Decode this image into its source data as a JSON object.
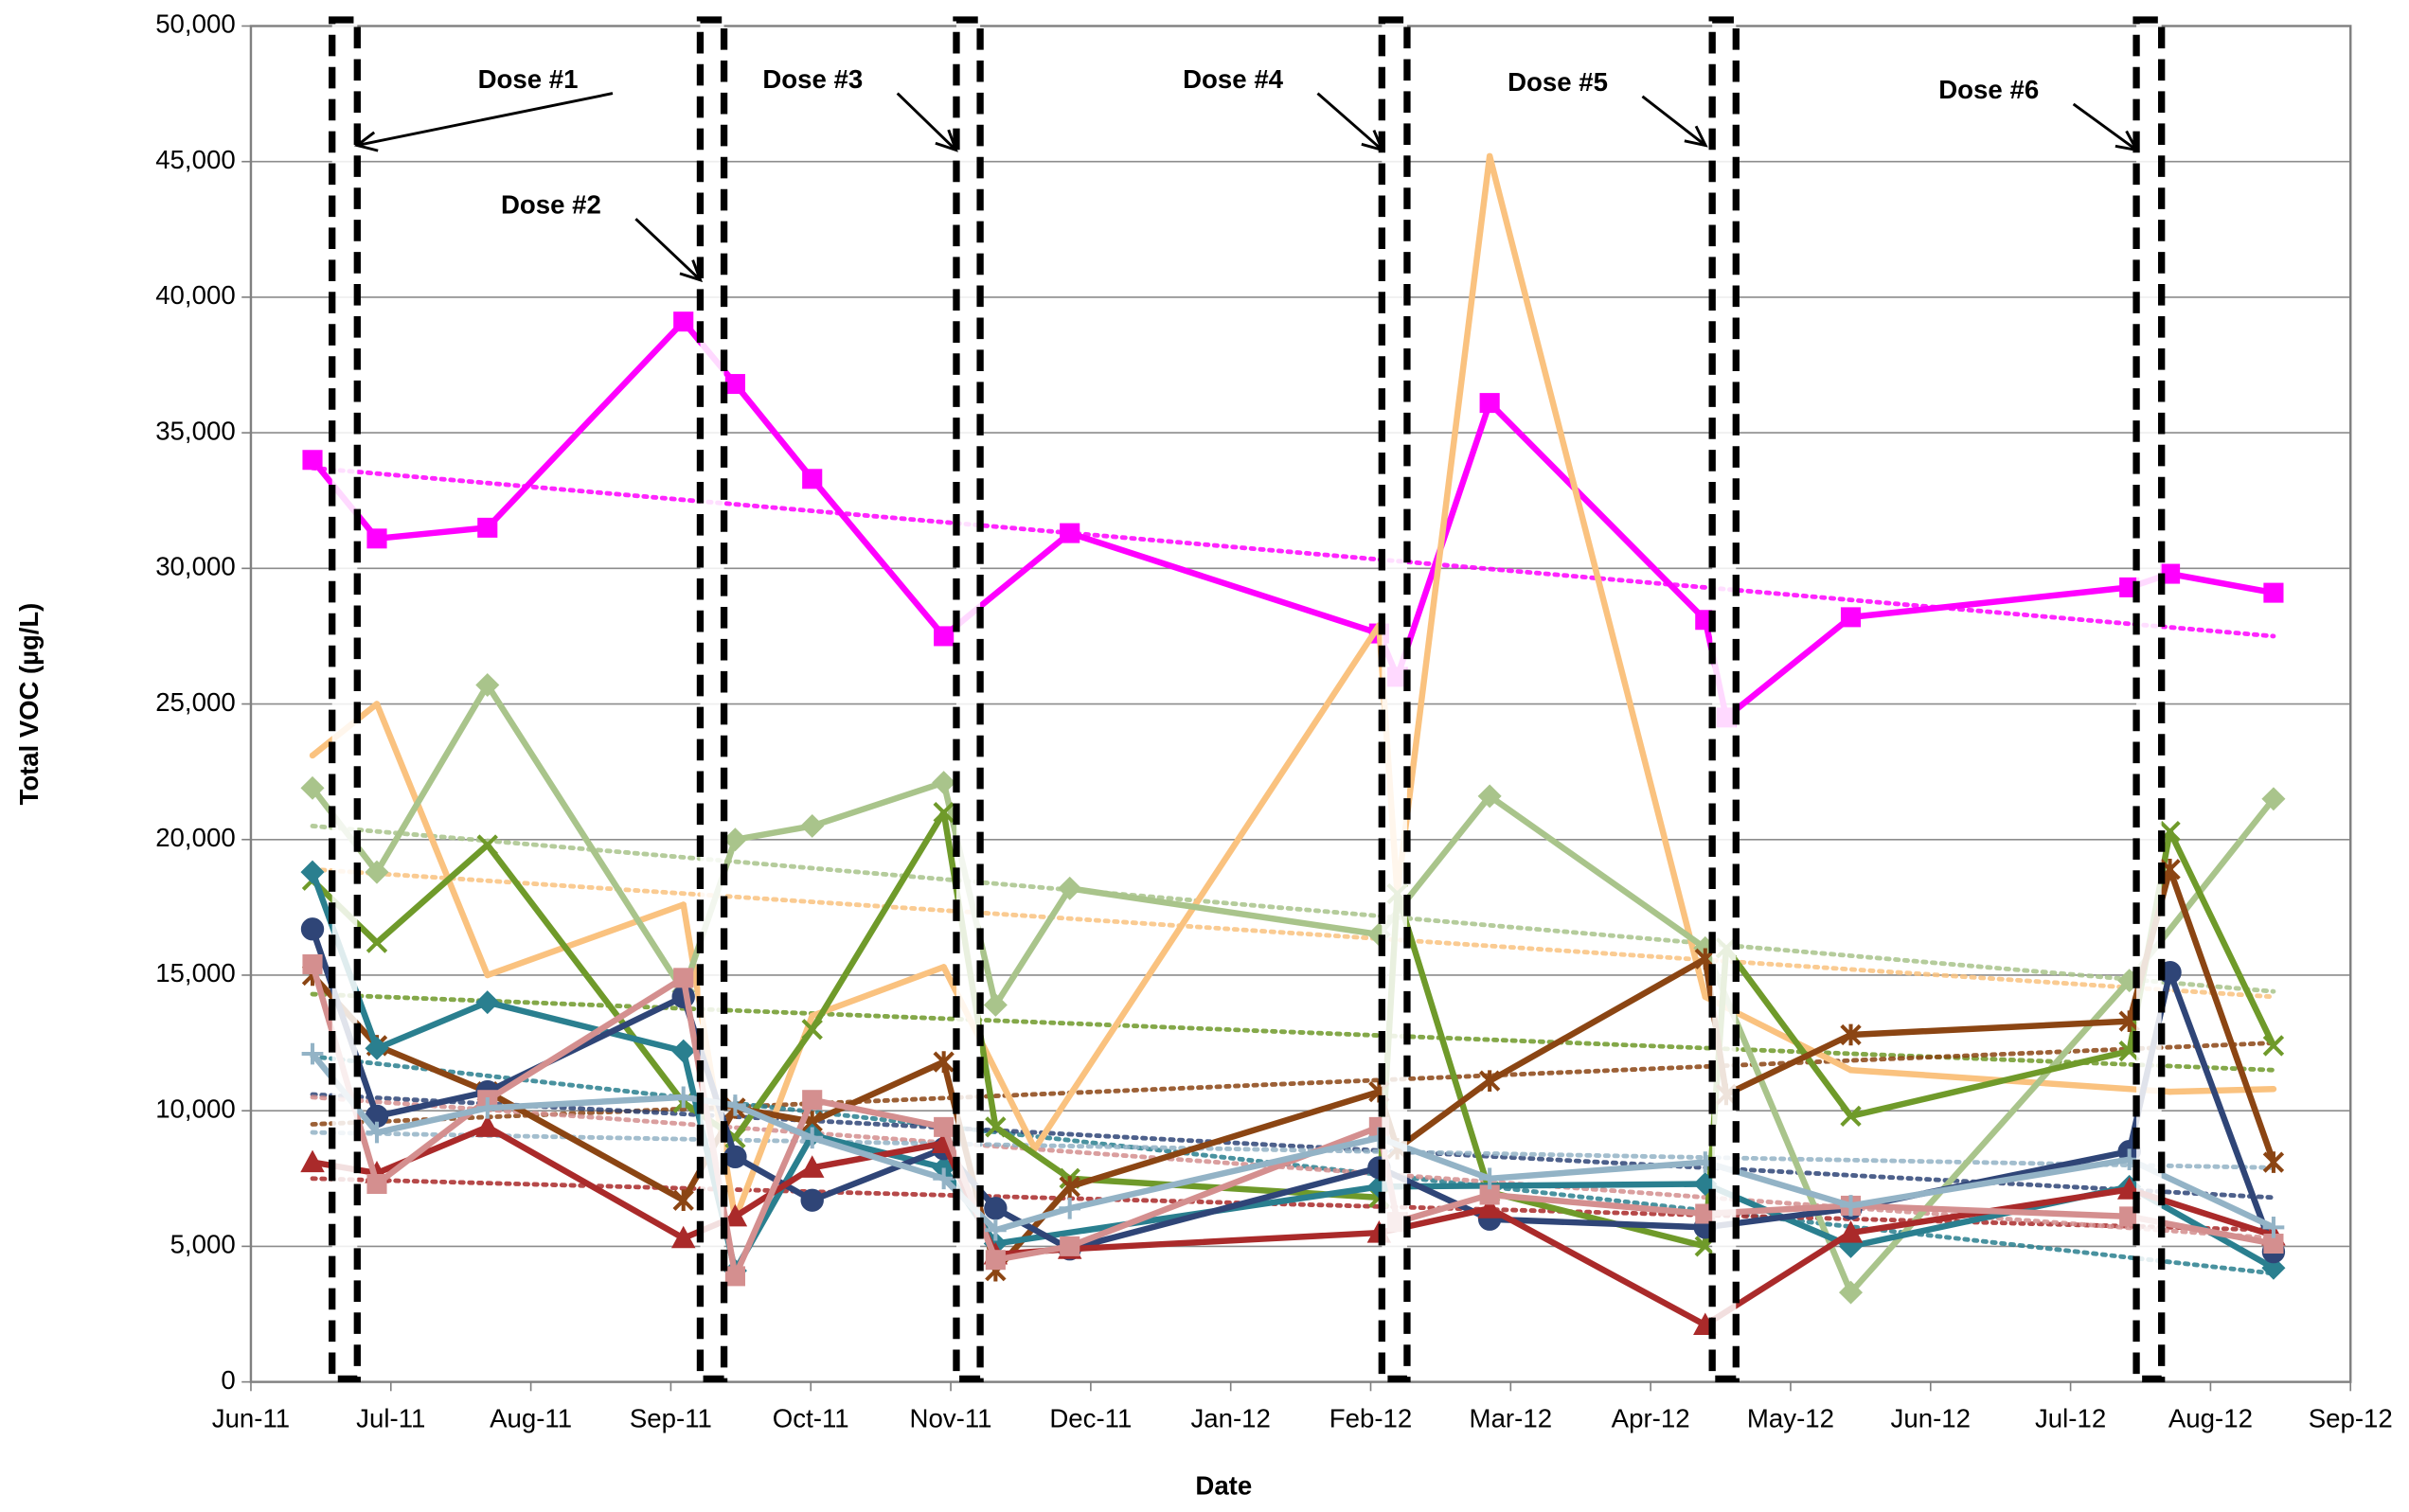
{
  "chart_data": {
    "type": "line",
    "x_label": "Date",
    "y_label": "Total VOC (µg/L)",
    "xlim": [
      0,
      15
    ],
    "xticks": [
      {
        "value": 0,
        "label": "Jun-11"
      },
      {
        "value": 1,
        "label": "Jul-11"
      },
      {
        "value": 2,
        "label": "Aug-11"
      },
      {
        "value": 3,
        "label": "Sep-11"
      },
      {
        "value": 4,
        "label": "Oct-11"
      },
      {
        "value": 5,
        "label": "Nov-11"
      },
      {
        "value": 6,
        "label": "Dec-11"
      },
      {
        "value": 7,
        "label": "Jan-12"
      },
      {
        "value": 8,
        "label": "Feb-12"
      },
      {
        "value": 9,
        "label": "Mar-12"
      },
      {
        "value": 10,
        "label": "Apr-12"
      },
      {
        "value": 11,
        "label": "May-12"
      },
      {
        "value": 12,
        "label": "Jun-12"
      },
      {
        "value": 13,
        "label": "Jul-12"
      },
      {
        "value": 14,
        "label": "Aug-12"
      },
      {
        "value": 15,
        "label": "Sep-12"
      }
    ],
    "ylim": [
      0,
      50000
    ],
    "yticks": [
      0,
      {
        "value": 5000,
        "label": "5,000"
      },
      {
        "value": 10000,
        "label": "10,000"
      },
      {
        "value": 15000,
        "label": "15,000"
      },
      {
        "value": 20000,
        "label": "20,000"
      },
      {
        "value": 25000,
        "label": "25,000"
      },
      {
        "value": 30000,
        "label": "30,000"
      },
      {
        "value": 35000,
        "label": "35,000"
      },
      {
        "value": 40000,
        "label": "40,000"
      },
      {
        "value": 45000,
        "label": "45,000"
      },
      {
        "value": 50000,
        "label": "50,000"
      }
    ],
    "grid": true,
    "trend_x": [
      0.44,
      14.45
    ],
    "doses": [
      {
        "label": "Dose #1",
        "x": [
          0.58,
          0.76
        ]
      },
      {
        "label": "Dose #2",
        "x": [
          3.21,
          3.38
        ]
      },
      {
        "label": "Dose #3",
        "x": [
          5.04,
          5.21
        ]
      },
      {
        "label": "Dose #4",
        "x": [
          8.08,
          8.26
        ]
      },
      {
        "label": "Dose #5",
        "x": [
          10.44,
          10.61
        ]
      },
      {
        "label": "Dose #6",
        "x": [
          13.47,
          13.65
        ]
      }
    ],
    "series": [
      {
        "color": "#ff00ff",
        "marker": "square",
        "x": [
          0.44,
          0.9,
          1.69,
          3.09,
          3.46,
          4.01,
          4.95,
          5.85,
          8.06,
          8.19,
          8.85,
          10.39,
          10.54,
          11.43,
          13.42,
          13.71,
          14.45
        ],
        "values": [
          34000,
          31100,
          31500,
          39100,
          36800,
          33300,
          27500,
          31300,
          27600,
          26000,
          36100,
          28100,
          24500,
          28200,
          29300,
          29800,
          29100
        ],
        "trend": [
          33700,
          27500
        ]
      },
      {
        "color": "#fac27f",
        "marker": "none",
        "x": [
          0.44,
          0.9,
          1.69,
          3.09,
          3.46,
          4.01,
          4.95,
          5.6,
          8.06,
          8.19,
          8.85,
          10.39,
          11.43,
          13.71,
          14.45
        ],
        "values": [
          23100,
          25000,
          15000,
          17600,
          6000,
          13500,
          15300,
          8600,
          27900,
          18000,
          45200,
          14200,
          11500,
          10700,
          10800
        ],
        "trend": [
          18900,
          14200
        ]
      },
      {
        "color": "#a9c48b",
        "marker": "diamond",
        "x": [
          0.44,
          0.9,
          1.69,
          3.09,
          3.46,
          4.01,
          4.95,
          5.32,
          5.85,
          8.06,
          8.85,
          10.39,
          11.43,
          13.42,
          14.45
        ],
        "values": [
          21900,
          18800,
          25700,
          14400,
          20000,
          20500,
          22100,
          13900,
          18200,
          16500,
          21600,
          16000,
          3300,
          14800,
          21500
        ],
        "trend": [
          20500,
          14400
        ]
      },
      {
        "color": "#6f9a2a",
        "marker": "x",
        "x": [
          0.44,
          0.9,
          1.69,
          3.09,
          3.46,
          4.01,
          4.95,
          5.32,
          5.85,
          8.06,
          8.19,
          8.85,
          10.39,
          10.54,
          11.43,
          13.42,
          13.71,
          14.45
        ],
        "values": [
          18500,
          16200,
          19800,
          10300,
          9000,
          13000,
          21000,
          9400,
          7500,
          6800,
          18000,
          7000,
          5000,
          16000,
          9800,
          12200,
          20300,
          12400
        ],
        "trend": [
          14300,
          11500
        ]
      },
      {
        "color": "#8b4513",
        "marker": "star",
        "x": [
          0.44,
          0.9,
          1.69,
          3.09,
          3.46,
          4.01,
          4.95,
          5.32,
          5.85,
          8.06,
          8.19,
          8.85,
          10.39,
          10.54,
          11.43,
          13.42,
          13.71,
          14.45
        ],
        "values": [
          15000,
          12400,
          10700,
          6700,
          10100,
          9600,
          11800,
          4100,
          7200,
          10700,
          8600,
          11100,
          15600,
          10600,
          12800,
          13300,
          18900,
          8100
        ],
        "trend": [
          9500,
          12500
        ]
      },
      {
        "color": "#2a7f8f",
        "marker": "diamond",
        "x": [
          0.44,
          0.9,
          1.69,
          3.09,
          3.46,
          4.01,
          4.95,
          5.32,
          8.06,
          10.39,
          11.43,
          13.42,
          14.45
        ],
        "values": [
          18800,
          12300,
          14000,
          12200,
          4100,
          9100,
          7900,
          5100,
          7200,
          7300,
          5000,
          7200,
          4200
        ],
        "trend": [
          12000,
          4000
        ]
      },
      {
        "color": "#2f4577",
        "marker": "circle",
        "x": [
          0.44,
          0.9,
          1.69,
          3.09,
          3.46,
          4.01,
          4.95,
          5.32,
          5.85,
          8.06,
          8.85,
          10.39,
          11.43,
          13.42,
          13.71,
          14.45
        ],
        "values": [
          16700,
          9800,
          10700,
          14200,
          8300,
          6700,
          8600,
          6400,
          4900,
          7900,
          6000,
          5700,
          6400,
          8500,
          15100,
          4800
        ],
        "trend": [
          10600,
          6800
        ]
      },
      {
        "color": "#aa2a2a",
        "marker": "triangle",
        "x": [
          0.44,
          0.9,
          1.69,
          3.09,
          3.46,
          4.01,
          4.95,
          5.32,
          5.85,
          8.06,
          8.85,
          10.39,
          11.43,
          13.42,
          14.45
        ],
        "values": [
          8100,
          7700,
          9400,
          5300,
          6100,
          7900,
          8800,
          4700,
          4900,
          5500,
          6400,
          2100,
          5500,
          7100,
          5400
        ],
        "trend": [
          7500,
          5600
        ]
      },
      {
        "color": "#d48f8f",
        "marker": "square",
        "x": [
          0.44,
          0.9,
          1.69,
          3.09,
          3.46,
          4.01,
          4.95,
          5.32,
          5.85,
          8.06,
          8.19,
          8.85,
          10.39,
          11.43,
          13.42,
          14.45
        ],
        "values": [
          15400,
          7300,
          10400,
          14900,
          3900,
          10400,
          9400,
          4500,
          5000,
          9400,
          5900,
          6900,
          6200,
          6500,
          6100,
          5100
        ],
        "trend": [
          10500,
          5300
        ]
      },
      {
        "color": "#93b3c6",
        "marker": "plus",
        "x": [
          0.44,
          0.9,
          1.69,
          3.09,
          3.46,
          4.01,
          4.95,
          5.32,
          5.85,
          8.06,
          8.85,
          10.39,
          11.43,
          13.42,
          14.45
        ],
        "values": [
          12100,
          9200,
          10100,
          10500,
          10200,
          9000,
          7500,
          5600,
          6400,
          9000,
          7500,
          8100,
          6500,
          8200,
          5700
        ],
        "trend": [
          9200,
          7900
        ]
      }
    ]
  }
}
